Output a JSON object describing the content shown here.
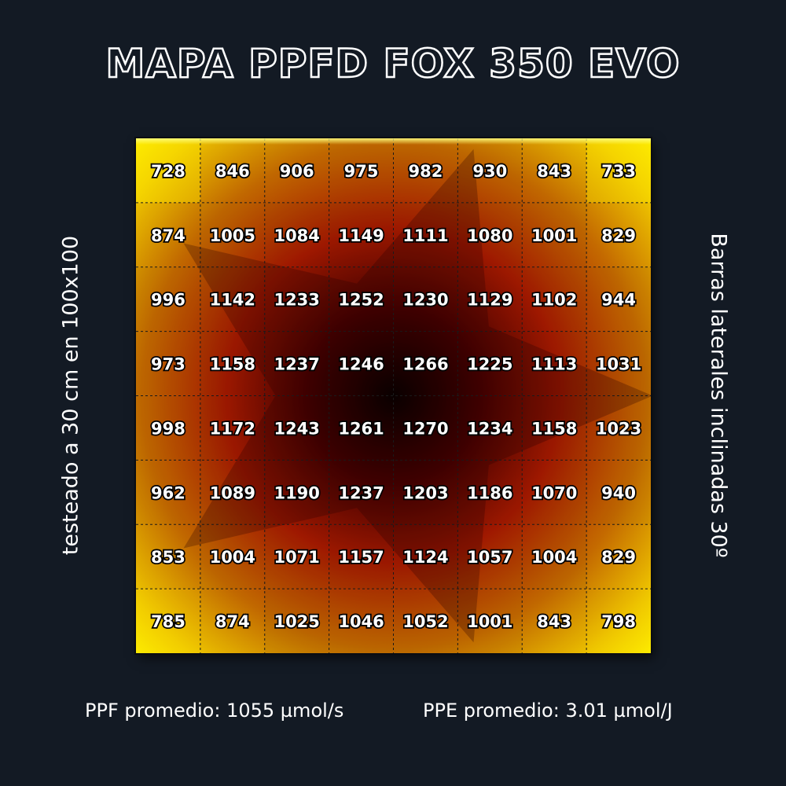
{
  "title": "MAPA PPFD FOX 350 EVO",
  "side_left": "testeado a 30 cm en 100x100",
  "side_right": "Barras laterales inclinadas 30º",
  "footer": {
    "ppf": "PPF promedio: 1055 µmol/s",
    "ppe": "PPE promedio: 3.01 µmol/J"
  },
  "chart_data": {
    "type": "heatmap",
    "title": "MAPA PPFD FOX 350 EVO",
    "rows": 8,
    "cols": 8,
    "values": [
      [
        728,
        846,
        906,
        975,
        982,
        930,
        843,
        733
      ],
      [
        874,
        1005,
        1084,
        1149,
        1111,
        1080,
        1001,
        829
      ],
      [
        996,
        1142,
        1233,
        1252,
        1230,
        1129,
        1102,
        944
      ],
      [
        973,
        1158,
        1237,
        1246,
        1266,
        1225,
        1113,
        1031
      ],
      [
        998,
        1172,
        1243,
        1261,
        1270,
        1234,
        1158,
        1023
      ],
      [
        962,
        1089,
        1190,
        1237,
        1203,
        1186,
        1070,
        940
      ],
      [
        853,
        1004,
        1071,
        1157,
        1124,
        1057,
        1004,
        829
      ],
      [
        785,
        874,
        1025,
        1046,
        1052,
        1001,
        843,
        798
      ]
    ],
    "colors": {
      "low": "#ffea00",
      "mid": "#c04a00",
      "high": "#000000",
      "grid_line": "#1a1a1a"
    },
    "legend": "none"
  }
}
